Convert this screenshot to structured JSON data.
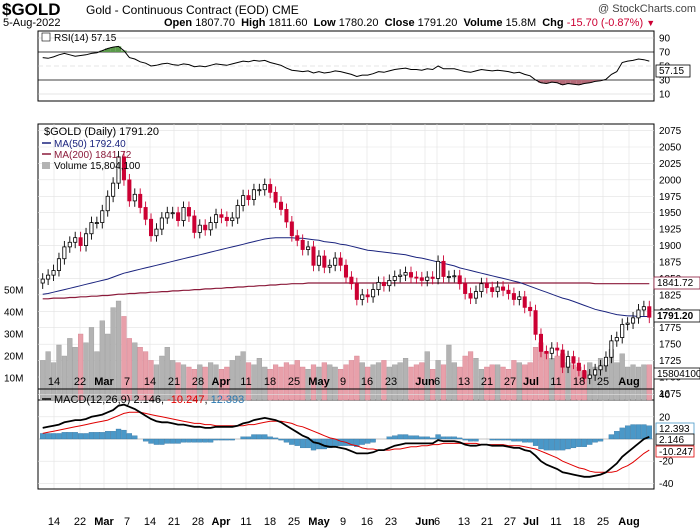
{
  "header": {
    "symbol": "$GOLD",
    "name": "Gold - Continuous Contract (EOD)",
    "exchange": "CME",
    "date": "5-Aug-2022",
    "open_label": "Open",
    "open": "1807.70",
    "high_label": "High",
    "high": "1811.60",
    "low_label": "Low",
    "low": "1780.20",
    "close_label": "Close",
    "close": "1791.20",
    "volume_label": "Volume",
    "volume": "15.8M",
    "chg_label": "Chg",
    "chg": "-15.70 (-0.87%)",
    "chg_color": "#cc0033"
  },
  "credit": "@ StockCharts.com",
  "colors": {
    "up": "#000000",
    "down": "#cc0033",
    "ma50": "#1a237e",
    "ma200": "#8b1a3a",
    "vol_up": "#b3b3b3",
    "vol_down": "#e8a0aa",
    "macd_line": "#000000",
    "signal_line": "#e00000",
    "histogram": "#4a98c8",
    "rsi_fill_low": "#b46a78",
    "rsi_fill_high": "#5a9a4a"
  },
  "rsi_panel": {
    "legend": "RSI(14) 57.15",
    "value_tag": "57.15",
    "ticks": [
      "90",
      "70",
      "50",
      "30",
      "10"
    ]
  },
  "price_panel": {
    "legend_main": "$GOLD (Daily) 1791.20",
    "legend_ma50": "MA(50) 1792.40",
    "legend_ma200": "MA(200) 1841.72",
    "legend_volume": "Volume 15,804,100",
    "tag_ma200": "1841.72",
    "tag_close": "1791.20",
    "tag_volume": "15804100",
    "ticks": [
      "2075",
      "2050",
      "2025",
      "2000",
      "1975",
      "1950",
      "1925",
      "1900",
      "1875",
      "1850",
      "1825",
      "1800",
      "1775",
      "1750",
      "1725",
      "1700",
      "1675"
    ],
    "volume_ticks": [
      "50M",
      "40M",
      "30M",
      "20M",
      "10M"
    ]
  },
  "macd_panel": {
    "legend_prefix": "MACD(12,26,9)",
    "macd_value": "2.146",
    "signal_value": "-10.247",
    "hist_value": "12.393",
    "ticks": [
      "40",
      "20",
      "0",
      "-20",
      "-40"
    ]
  },
  "x_axis": [
    {
      "label": "14",
      "bold": false
    },
    {
      "label": "22",
      "bold": false
    },
    {
      "label": "Mar",
      "bold": true
    },
    {
      "label": "7",
      "bold": false
    },
    {
      "label": "14",
      "bold": false
    },
    {
      "label": "21",
      "bold": false
    },
    {
      "label": "28",
      "bold": false
    },
    {
      "label": "Apr",
      "bold": true
    },
    {
      "label": "11",
      "bold": false
    },
    {
      "label": "18",
      "bold": false
    },
    {
      "label": "25",
      "bold": false
    },
    {
      "label": "May",
      "bold": true
    },
    {
      "label": "9",
      "bold": false
    },
    {
      "label": "16",
      "bold": false
    },
    {
      "label": "23",
      "bold": false
    },
    {
      "label": "Jun",
      "bold": true
    },
    {
      "label": "6",
      "bold": false
    },
    {
      "label": "13",
      "bold": false
    },
    {
      "label": "21",
      "bold": false
    },
    {
      "label": "27",
      "bold": false
    },
    {
      "label": "Jul",
      "bold": true
    },
    {
      "label": "11",
      "bold": false
    },
    {
      "label": "18",
      "bold": false
    },
    {
      "label": "25",
      "bold": false
    },
    {
      "label": "Aug",
      "bold": true
    }
  ],
  "chart_data": {
    "type": "candlestick",
    "price_range": [
      1665,
      2085
    ],
    "close": [
      1849,
      1855,
      1862,
      1880,
      1898,
      1905,
      1912,
      1900,
      1918,
      1935,
      1935,
      1953,
      1975,
      1995,
      2035,
      2000,
      1968,
      1978,
      1958,
      1940,
      1915,
      1925,
      1942,
      1950,
      1950,
      1938,
      1958,
      1945,
      1920,
      1931,
      1924,
      1935,
      1947,
      1943,
      1938,
      1942,
      1961,
      1976,
      1970,
      1985,
      1985,
      1993,
      1981,
      1966,
      1955,
      1936,
      1915,
      1908,
      1894,
      1898,
      1870,
      1884,
      1867,
      1870,
      1881,
      1870,
      1852,
      1842,
      1818,
      1825,
      1822,
      1833,
      1844,
      1839,
      1847,
      1853,
      1855,
      1859,
      1852,
      1851,
      1847,
      1852,
      1850,
      1876,
      1853,
      1853,
      1854,
      1842,
      1827,
      1820,
      1830,
      1842,
      1836,
      1830,
      1837,
      1832,
      1827,
      1818,
      1822,
      1806,
      1801,
      1765,
      1739,
      1736,
      1744,
      1741,
      1715,
      1731,
      1721,
      1710,
      1698,
      1703,
      1711,
      1717,
      1730,
      1755,
      1760,
      1780,
      1782,
      1790,
      1802,
      1807,
      1791
    ],
    "ma50": [
      1826,
      1827,
      1829,
      1831,
      1833,
      1835,
      1837,
      1839,
      1841,
      1843,
      1845,
      1847,
      1849,
      1852,
      1855,
      1858,
      1860,
      1862,
      1864,
      1866,
      1868,
      1870,
      1872,
      1874,
      1876,
      1878,
      1880,
      1882,
      1884,
      1886,
      1888,
      1890,
      1892,
      1894,
      1896,
      1898,
      1900,
      1902,
      1904,
      1906,
      1908,
      1910,
      1911,
      1912,
      1912,
      1912,
      1912,
      1911,
      1911,
      1910,
      1909,
      1908,
      1906,
      1905,
      1904,
      1902,
      1901,
      1899,
      1897,
      1895,
      1893,
      1892,
      1891,
      1890,
      1889,
      1888,
      1887,
      1886,
      1884,
      1882,
      1881,
      1879,
      1877,
      1875,
      1873,
      1871,
      1869,
      1866,
      1864,
      1862,
      1860,
      1858,
      1856,
      1854,
      1852,
      1850,
      1848,
      1846,
      1844,
      1841,
      1838,
      1835,
      1832,
      1829,
      1826,
      1823,
      1820,
      1818,
      1815,
      1812,
      1809,
      1806,
      1803,
      1801,
      1799,
      1797,
      1795,
      1794,
      1793,
      1793,
      1792,
      1792,
      1792
    ],
    "ma200": [
      1819,
      1819,
      1820,
      1820,
      1820,
      1821,
      1821,
      1822,
      1822,
      1823,
      1823,
      1824,
      1824,
      1825,
      1826,
      1826,
      1827,
      1827,
      1828,
      1828,
      1829,
      1829,
      1830,
      1830,
      1831,
      1831,
      1832,
      1832,
      1833,
      1833,
      1834,
      1834,
      1835,
      1835,
      1836,
      1836,
      1837,
      1837,
      1838,
      1838,
      1839,
      1839,
      1840,
      1840,
      1841,
      1841,
      1842,
      1842,
      1842,
      1843,
      1843,
      1843,
      1843,
      1843,
      1843,
      1843,
      1843,
      1843,
      1843,
      1843,
      1843,
      1843,
      1843,
      1843,
      1843,
      1843,
      1843,
      1843,
      1843,
      1843,
      1843,
      1843,
      1843,
      1843,
      1843,
      1843,
      1843,
      1843,
      1843,
      1843,
      1843,
      1843,
      1843,
      1843,
      1843,
      1843,
      1843,
      1843,
      1843,
      1843,
      1843,
      1843,
      1843,
      1843,
      1843,
      1843,
      1843,
      1843,
      1843,
      1843,
      1843,
      1843,
      1842,
      1842,
      1842,
      1842,
      1842,
      1842,
      1842,
      1842,
      1842,
      1842,
      1842
    ],
    "volume_millions": [
      18,
      22,
      17,
      25,
      20,
      28,
      24,
      30,
      26,
      33,
      22,
      36,
      30,
      42,
      45,
      38,
      28,
      26,
      24,
      22,
      18,
      16,
      20,
      24,
      18,
      17,
      16,
      15,
      14,
      16,
      15,
      17,
      16,
      14,
      15,
      18,
      20,
      22,
      17,
      16,
      19,
      15,
      14,
      16,
      15,
      17,
      16,
      18,
      15,
      14,
      16,
      15,
      17,
      16,
      15,
      14,
      16,
      18,
      20,
      17,
      15,
      16,
      17,
      18,
      15,
      16,
      17,
      19,
      15,
      16,
      17,
      22,
      14,
      18,
      16,
      25,
      17,
      15,
      20,
      22,
      19,
      14,
      15,
      16,
      16,
      15,
      14,
      18,
      17,
      16,
      17,
      24,
      26,
      22,
      19,
      20,
      21,
      17,
      16,
      15,
      13,
      17,
      15,
      19,
      16,
      23,
      17,
      21,
      15,
      16,
      15,
      16,
      16
    ],
    "rsi": [
      62,
      61,
      63,
      66,
      68,
      66,
      64,
      65,
      66,
      68,
      69,
      72,
      75,
      77,
      78,
      72,
      62,
      60,
      56,
      54,
      50,
      51,
      53,
      54,
      52,
      51,
      53,
      52,
      49,
      50,
      49,
      51,
      53,
      52,
      51,
      53,
      55,
      57,
      56,
      58,
      57,
      58,
      55,
      53,
      51,
      47,
      44,
      43,
      42,
      43,
      40,
      42,
      40,
      41,
      43,
      42,
      40,
      38,
      35,
      37,
      37,
      39,
      42,
      41,
      43,
      45,
      46,
      47,
      45,
      45,
      44,
      46,
      45,
      50,
      46,
      46,
      46,
      44,
      42,
      41,
      43,
      45,
      44,
      43,
      44,
      43,
      42,
      40,
      41,
      38,
      36,
      30,
      26,
      25,
      27,
      26,
      23,
      25,
      24,
      23,
      25,
      26,
      28,
      29,
      31,
      38,
      42,
      55,
      57,
      58,
      60,
      59,
      57
    ],
    "macd": [
      10,
      11,
      12,
      13,
      15,
      16,
      17,
      17,
      18,
      20,
      21,
      22,
      24,
      26,
      30,
      31,
      29,
      27,
      24,
      21,
      18,
      16,
      15,
      15,
      14,
      13,
      13,
      12,
      11,
      11,
      10,
      10,
      11,
      11,
      11,
      11,
      12,
      14,
      15,
      17,
      18,
      19,
      18,
      17,
      15,
      12,
      9,
      6,
      3,
      1,
      -3,
      -4,
      -6,
      -7,
      -7,
      -8,
      -9,
      -11,
      -13,
      -13,
      -13,
      -12,
      -10,
      -10,
      -8,
      -6,
      -5,
      -4,
      -4,
      -4,
      -4,
      -4,
      -4,
      -1,
      -2,
      -2,
      -2,
      -3,
      -5,
      -6,
      -6,
      -5,
      -5,
      -6,
      -6,
      -6,
      -7,
      -8,
      -8,
      -10,
      -11,
      -15,
      -20,
      -23,
      -25,
      -27,
      -30,
      -31,
      -32,
      -33,
      -34,
      -34,
      -33,
      -32,
      -30,
      -26,
      -22,
      -16,
      -12,
      -8,
      -4,
      0,
      2
    ],
    "signal": [
      5,
      6,
      7,
      8,
      9,
      10,
      11,
      12,
      13,
      14,
      15,
      16,
      17,
      19,
      21,
      23,
      24,
      24,
      24,
      23,
      22,
      21,
      20,
      19,
      18,
      17,
      16,
      15,
      14,
      14,
      13,
      13,
      12,
      12,
      12,
      12,
      12,
      12,
      13,
      13,
      14,
      15,
      16,
      16,
      16,
      15,
      14,
      12,
      11,
      9,
      7,
      5,
      3,
      1,
      0,
      -2,
      -3,
      -5,
      -6,
      -8,
      -9,
      -9,
      -10,
      -10,
      -10,
      -9,
      -9,
      -8,
      -7,
      -7,
      -6,
      -6,
      -5,
      -5,
      -4,
      -4,
      -4,
      -4,
      -4,
      -4,
      -4,
      -5,
      -5,
      -5,
      -5,
      -5,
      -6,
      -6,
      -6,
      -7,
      -8,
      -9,
      -11,
      -13,
      -15,
      -17,
      -20,
      -22,
      -24,
      -26,
      -27,
      -29,
      -30,
      -30,
      -30,
      -30,
      -29,
      -26,
      -24,
      -21,
      -17,
      -13,
      -10
    ]
  }
}
